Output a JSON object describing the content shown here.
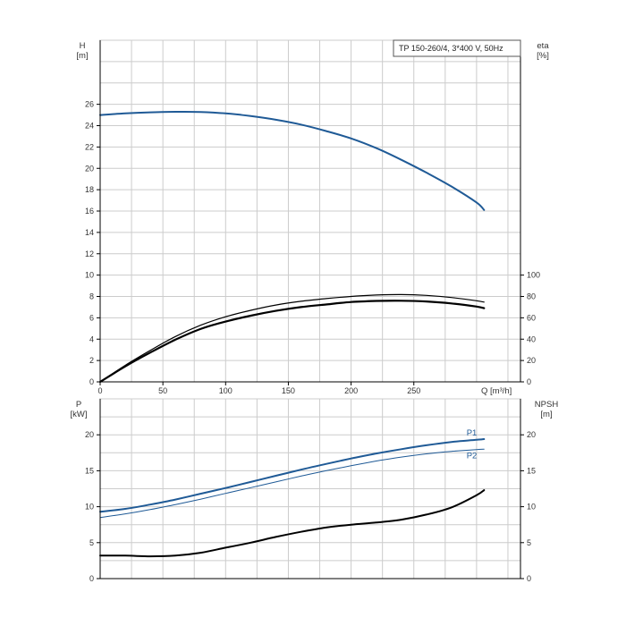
{
  "title": "TP 150-260/4, 3*400 V, 50Hz",
  "colors": {
    "blue": "#1f5a96",
    "black": "#000000",
    "grid": "#cccccc"
  },
  "top_left_axis": {
    "label": "H",
    "unit": "[m]",
    "ticks": [
      "0",
      "2",
      "4",
      "6",
      "8",
      "10",
      "12",
      "14",
      "16",
      "18",
      "20",
      "22",
      "24",
      "26"
    ]
  },
  "top_right_axis": {
    "label": "eta",
    "unit": "[%]",
    "ticks": [
      "0",
      "20",
      "40",
      "60",
      "80",
      "100"
    ]
  },
  "x_axis": {
    "label": "Q [m³/h]",
    "ticks": [
      "0",
      "50",
      "100",
      "150",
      "200",
      "250"
    ]
  },
  "bottom_left_axis": {
    "label": "P",
    "unit": "[kW]",
    "ticks": [
      "0",
      "5",
      "10",
      "15",
      "20"
    ]
  },
  "bottom_right_axis": {
    "label": "NPSH",
    "unit": "[m]",
    "ticks": [
      "0",
      "5",
      "10",
      "15",
      "20"
    ]
  },
  "chart_data": [
    {
      "type": "line",
      "title": "TP 150-260/4, 3*400 V, 50Hz",
      "xlabel": "Q [m³/h]",
      "ylabel": "H [m]",
      "y2label": "eta [%]",
      "xlim": [
        0,
        335
      ],
      "ylim": [
        0,
        32
      ],
      "y2lim": [
        0,
        100
      ],
      "grid": true,
      "series": [
        {
          "axis": "left",
          "color": "#1f5a96",
          "width": 2,
          "x": [
            0,
            20,
            40,
            60,
            80,
            100,
            120,
            140,
            160,
            180,
            200,
            220,
            240,
            260,
            280,
            300,
            306
          ],
          "y": [
            25.0,
            25.15,
            25.25,
            25.3,
            25.28,
            25.15,
            24.9,
            24.55,
            24.1,
            23.5,
            22.8,
            21.9,
            20.8,
            19.6,
            18.3,
            16.8,
            16.1
          ]
        },
        {
          "axis": "right",
          "color": "#000000",
          "width": 1.2,
          "x": [
            0,
            20,
            40,
            60,
            80,
            100,
            120,
            140,
            160,
            180,
            200,
            220,
            240,
            260,
            280,
            300,
            306
          ],
          "y": [
            0,
            15.5,
            29.5,
            42.5,
            53,
            61,
            67,
            72,
            75.5,
            78,
            80,
            81.3,
            81.8,
            81,
            79,
            76,
            74.7
          ]
        },
        {
          "axis": "right",
          "color": "#000000",
          "width": 2.2,
          "x": [
            0,
            20,
            40,
            60,
            80,
            100,
            120,
            140,
            160,
            180,
            200,
            220,
            240,
            260,
            280,
            300,
            306
          ],
          "y": [
            0,
            14.5,
            27.5,
            39.5,
            49.5,
            56.5,
            62,
            66.5,
            70,
            72.5,
            74.8,
            75.8,
            76,
            75.3,
            73.5,
            70.5,
            69
          ]
        }
      ]
    },
    {
      "type": "line",
      "xlabel": "Q [m³/h]",
      "ylabel": "P [kW]",
      "y2label": "NPSH [m]",
      "xlim": [
        0,
        335
      ],
      "ylim": [
        0,
        25
      ],
      "y2lim": [
        0,
        25
      ],
      "grid": true,
      "series": [
        {
          "name": "P1",
          "axis": "left",
          "color": "#1f5a96",
          "width": 2,
          "x": [
            0,
            20,
            40,
            60,
            80,
            100,
            120,
            140,
            160,
            180,
            200,
            220,
            240,
            260,
            280,
            300,
            306
          ],
          "y": [
            9.3,
            9.7,
            10.3,
            11.0,
            11.8,
            12.6,
            13.45,
            14.3,
            15.15,
            15.95,
            16.7,
            17.4,
            18.0,
            18.55,
            19.0,
            19.3,
            19.4
          ]
        },
        {
          "name": "P2",
          "axis": "left",
          "color": "#1f5a96",
          "width": 1,
          "x": [
            0,
            20,
            40,
            60,
            80,
            100,
            120,
            140,
            160,
            180,
            200,
            220,
            240,
            260,
            280,
            300,
            306
          ],
          "y": [
            8.5,
            9.0,
            9.6,
            10.3,
            11.05,
            11.85,
            12.65,
            13.45,
            14.25,
            15.0,
            15.7,
            16.35,
            16.9,
            17.35,
            17.7,
            17.95,
            18.0
          ]
        },
        {
          "axis": "right",
          "color": "#000000",
          "width": 2,
          "x": [
            0,
            20,
            40,
            60,
            80,
            100,
            120,
            140,
            160,
            180,
            200,
            220,
            240,
            260,
            280,
            300,
            306
          ],
          "y": [
            3.2,
            3.2,
            3.1,
            3.2,
            3.6,
            4.3,
            5.0,
            5.8,
            6.5,
            7.1,
            7.5,
            7.8,
            8.2,
            8.9,
            9.9,
            11.6,
            12.3
          ]
        }
      ]
    }
  ]
}
